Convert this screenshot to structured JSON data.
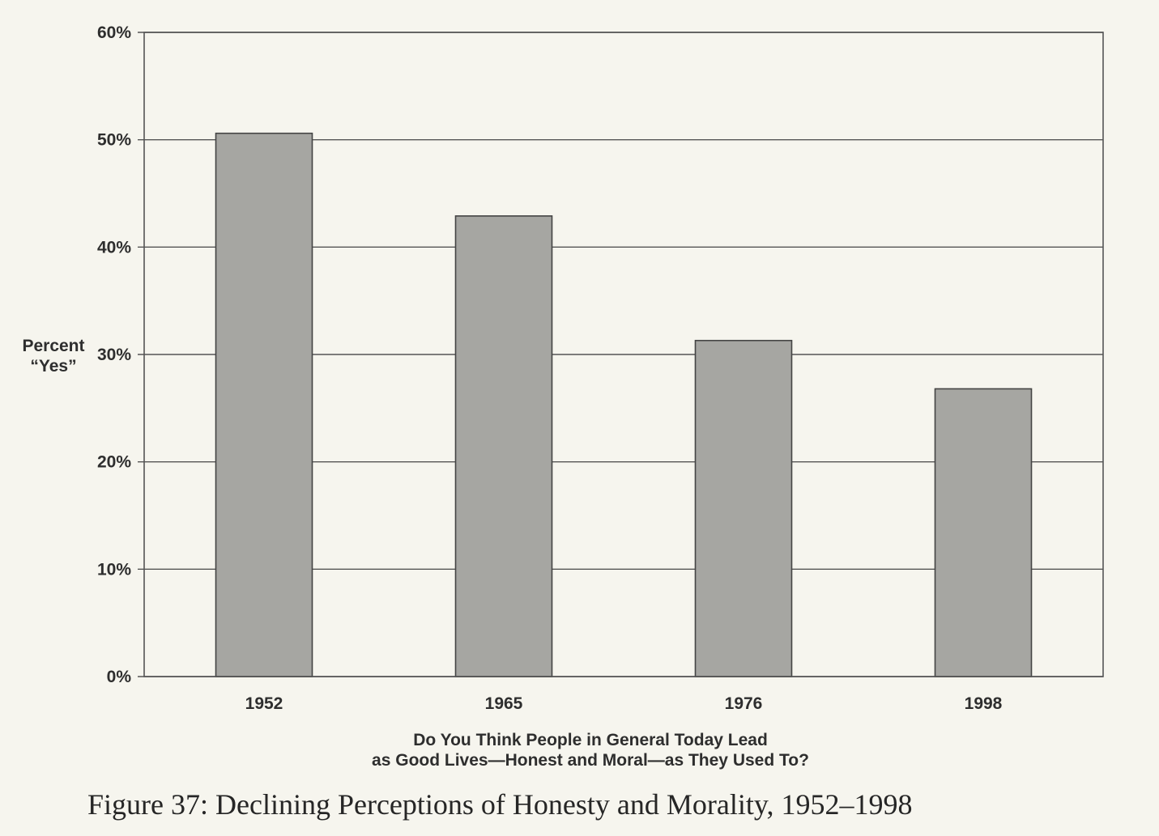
{
  "chart_data": {
    "type": "bar",
    "categories": [
      "1952",
      "1965",
      "1976",
      "1998"
    ],
    "values": [
      50.6,
      42.9,
      31.3,
      26.8
    ],
    "ylim": [
      0,
      60
    ],
    "yticks": [
      0,
      10,
      20,
      30,
      40,
      50,
      60
    ],
    "ytick_labels": [
      "0%",
      "10%",
      "20%",
      "30%",
      "40%",
      "50%",
      "60%"
    ],
    "ylabel_line1": "Percent",
    "ylabel_line2": "“Yes”",
    "xlabel_line1": "Do You Think People in General Today Lead",
    "xlabel_line2": "as Good Lives—Honest and Moral—as They Used To?",
    "grid": true,
    "bar_color": "#a6a6a2",
    "caption": "Figure 37: Declining Perceptions of Honesty and Morality, 1952–1998"
  }
}
